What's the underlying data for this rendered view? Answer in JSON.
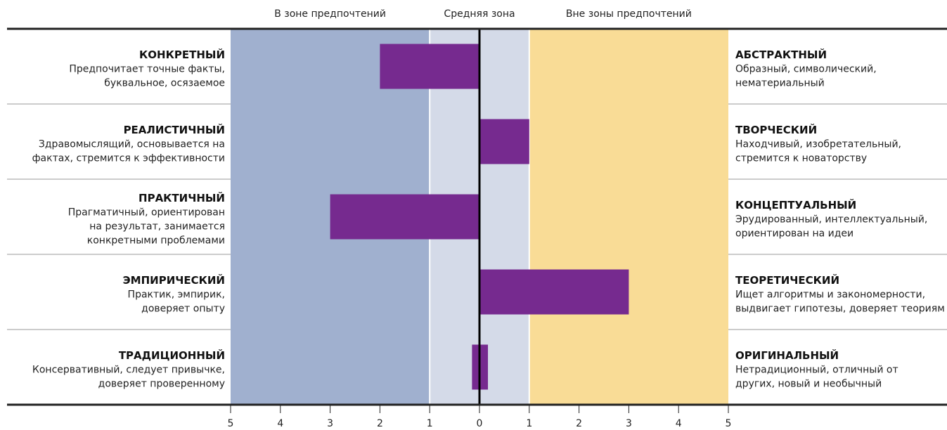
{
  "chart_data": {
    "type": "range-bar",
    "zones": [
      {
        "label": "В зоне предпочтений",
        "range": [
          -5,
          -1
        ],
        "color": "#a0b0cf"
      },
      {
        "label": "Средняя зона",
        "range": [
          -1,
          1
        ],
        "color": "#d4dae8"
      },
      {
        "label": "Вне зоны предпочтений",
        "range": [
          1,
          5
        ],
        "color": "#f9dc96"
      }
    ],
    "categories": [
      {
        "left": {
          "title": "КОНКРЕТНЫЙ",
          "text": [
            "Предпочитает точные факты,",
            "буквальное, осязаемое"
          ]
        },
        "right": {
          "title": "АБСТРАКТНЫЙ",
          "text": [
            "Образный, символический,",
            "нематериальный"
          ]
        }
      },
      {
        "left": {
          "title": "РЕАЛИСТИЧНЫЙ",
          "text": [
            "Здравомыслящий, основывается на",
            "фактах, стремится к эффективности"
          ]
        },
        "right": {
          "title": "ТВОРЧЕСКИЙ",
          "text": [
            "Находчивый, изобретательный,",
            "стремится к новаторству"
          ]
        }
      },
      {
        "left": {
          "title": "ПРАКТИЧНЫЙ",
          "text": [
            "Прагматичный, ориентирован",
            "на результат, занимается",
            "конкретными проблемами"
          ]
        },
        "right": {
          "title": "КОНЦЕПТУАЛЬНЫЙ",
          "text": [
            "Эрудированный, интеллектуальный,",
            "ориентирован на идеи"
          ]
        }
      },
      {
        "left": {
          "title": "ЭМПИРИЧЕСКИЙ",
          "text": [
            "Практик, эмпирик,",
            "доверяет опыту"
          ]
        },
        "right": {
          "title": "ТЕОРЕТИЧЕСКИЙ",
          "text": [
            "Ищет алгоритмы и закономерности,",
            "выдвигает гипотезы, доверяет теориям"
          ]
        }
      },
      {
        "left": {
          "title": "ТРАДИЦИОННЫЙ",
          "text": [
            "Консервативный, следует привычке,",
            "доверяет проверенному"
          ]
        },
        "right": {
          "title": "ОРИГИНАЛЬНЫЙ",
          "text": [
            "Нетрадиционный, отличный от",
            "других, новый и необычный"
          ]
        }
      }
    ],
    "values": [
      [
        0,
        -2
      ],
      [
        0,
        1
      ],
      [
        0,
        -3
      ],
      [
        0,
        3
      ],
      [
        -0.15,
        0.17
      ]
    ],
    "color": "#762a8f",
    "xlim": [
      -5,
      5
    ],
    "xticks": [
      {
        "value": -5,
        "label": "5"
      },
      {
        "value": -4,
        "label": "4"
      },
      {
        "value": -3,
        "label": "3"
      },
      {
        "value": -2,
        "label": "2"
      },
      {
        "value": -1,
        "label": "1"
      },
      0,
      1,
      2,
      3,
      4,
      5
    ]
  }
}
